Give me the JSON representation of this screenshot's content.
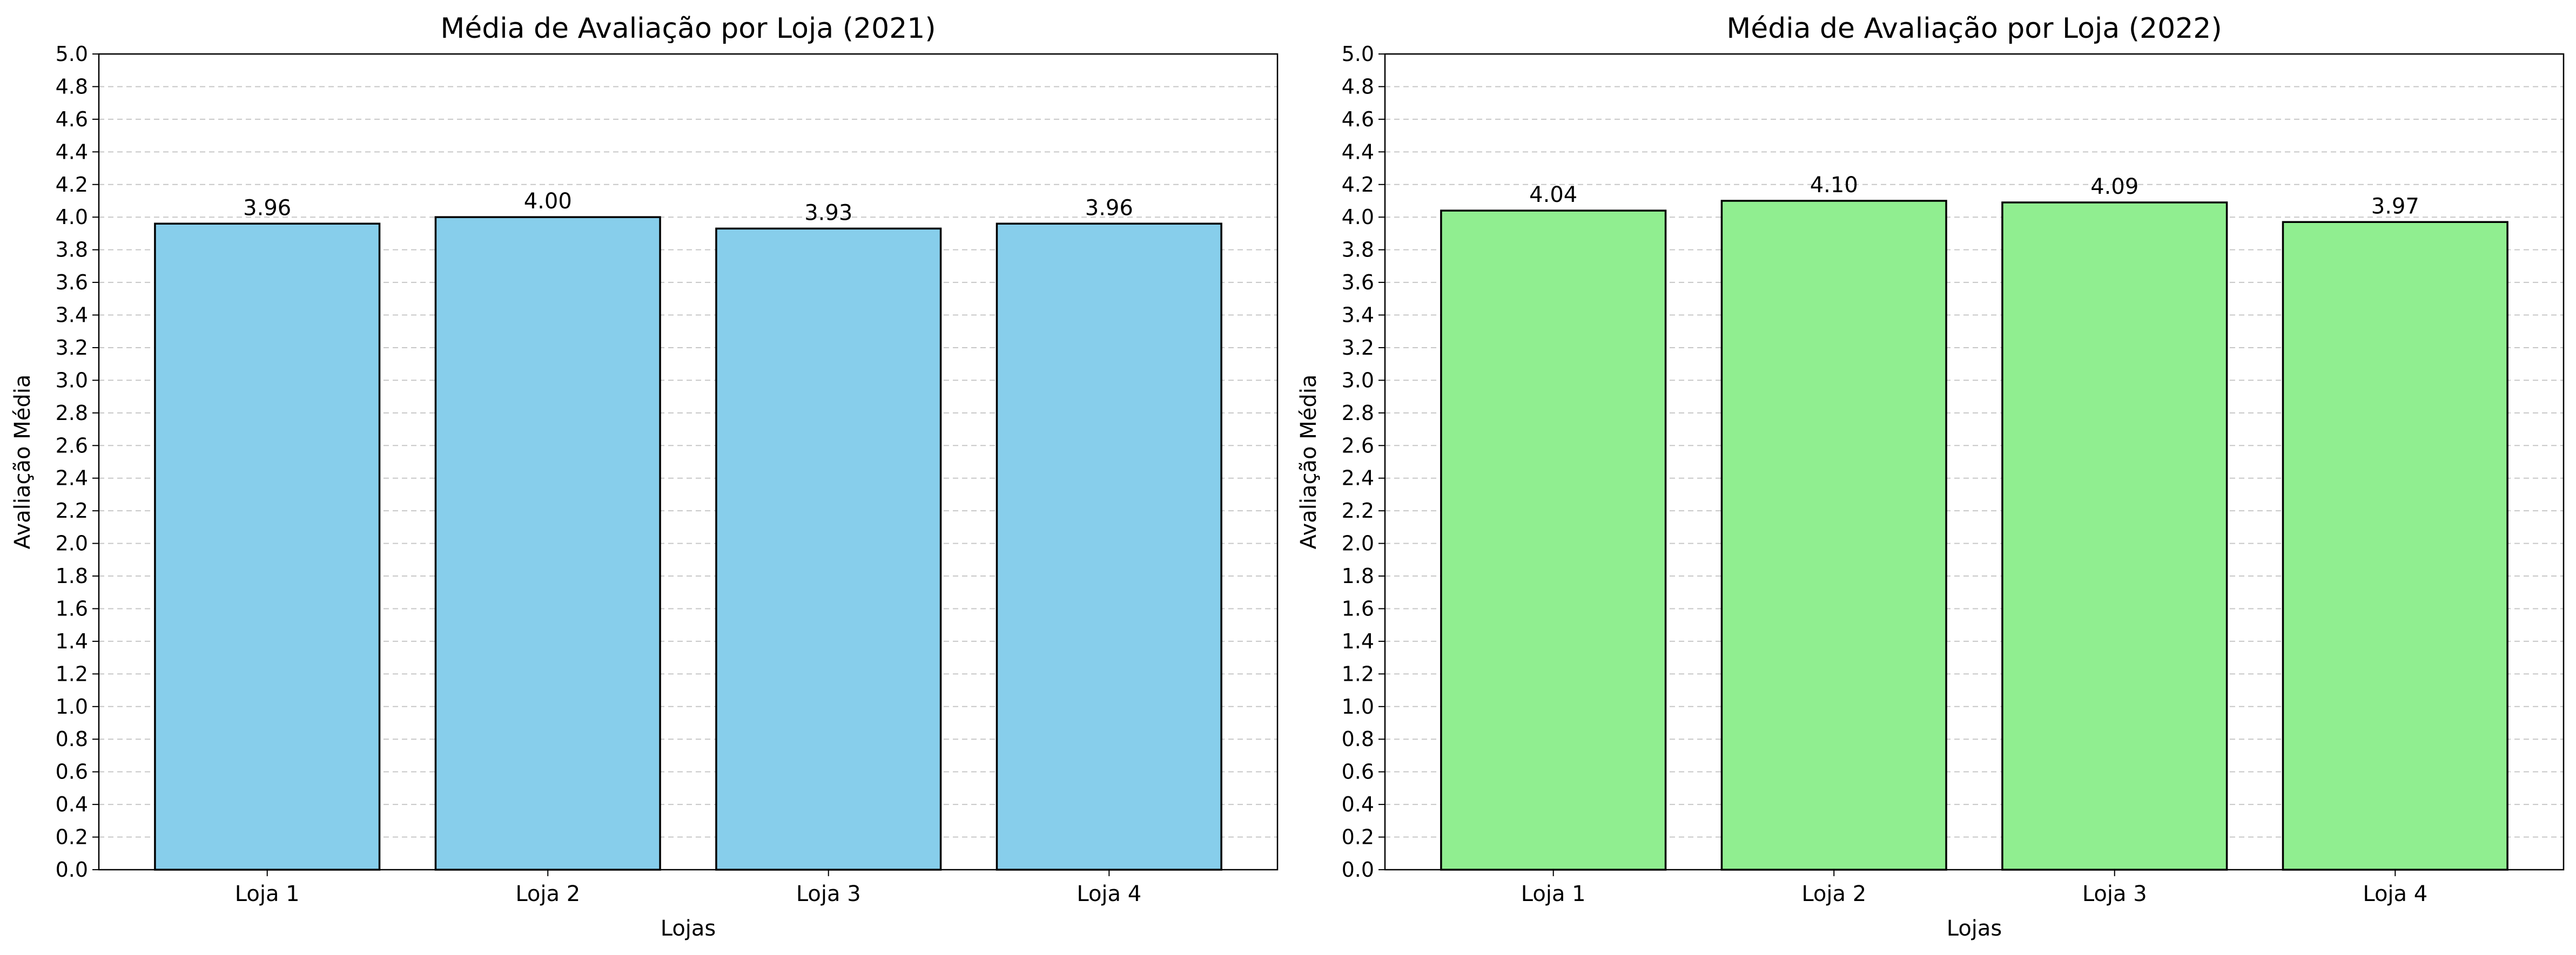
{
  "chart_data": [
    {
      "type": "bar",
      "title": "Média de Avaliação por Loja (2021)",
      "xlabel": "Lojas",
      "ylabel": "Avaliação Média",
      "categories": [
        "Loja 1",
        "Loja 2",
        "Loja 3",
        "Loja 4"
      ],
      "values": [
        3.96,
        4.0,
        3.93,
        3.96
      ],
      "value_labels": [
        "3.96",
        "4.00",
        "3.93",
        "3.96"
      ],
      "ylim": [
        0,
        5
      ],
      "yticks": [
        "0.0",
        "0.2",
        "0.4",
        "0.6",
        "0.8",
        "1.0",
        "1.2",
        "1.4",
        "1.6",
        "1.8",
        "2.0",
        "2.2",
        "2.4",
        "2.6",
        "2.8",
        "3.0",
        "3.2",
        "3.4",
        "3.6",
        "3.8",
        "4.0",
        "4.2",
        "4.4",
        "4.6",
        "4.8",
        "5.0"
      ],
      "bar_color": "#87CEEB",
      "edge_color": "#000000",
      "grid": "y-dashed"
    },
    {
      "type": "bar",
      "title": "Média de Avaliação por Loja (2022)",
      "xlabel": "Lojas",
      "ylabel": "Avaliação Média",
      "categories": [
        "Loja 1",
        "Loja 2",
        "Loja 3",
        "Loja 4"
      ],
      "values": [
        4.04,
        4.1,
        4.09,
        3.97
      ],
      "value_labels": [
        "4.04",
        "4.10",
        "4.09",
        "3.97"
      ],
      "ylim": [
        0,
        5
      ],
      "yticks": [
        "0.0",
        "0.2",
        "0.4",
        "0.6",
        "0.8",
        "1.0",
        "1.2",
        "1.4",
        "1.6",
        "1.8",
        "2.0",
        "2.2",
        "2.4",
        "2.6",
        "2.8",
        "3.0",
        "3.2",
        "3.4",
        "3.6",
        "3.8",
        "4.0",
        "4.2",
        "4.4",
        "4.6",
        "4.8",
        "5.0"
      ],
      "bar_color": "#90EE90",
      "edge_color": "#000000",
      "grid": "y-dashed"
    }
  ]
}
